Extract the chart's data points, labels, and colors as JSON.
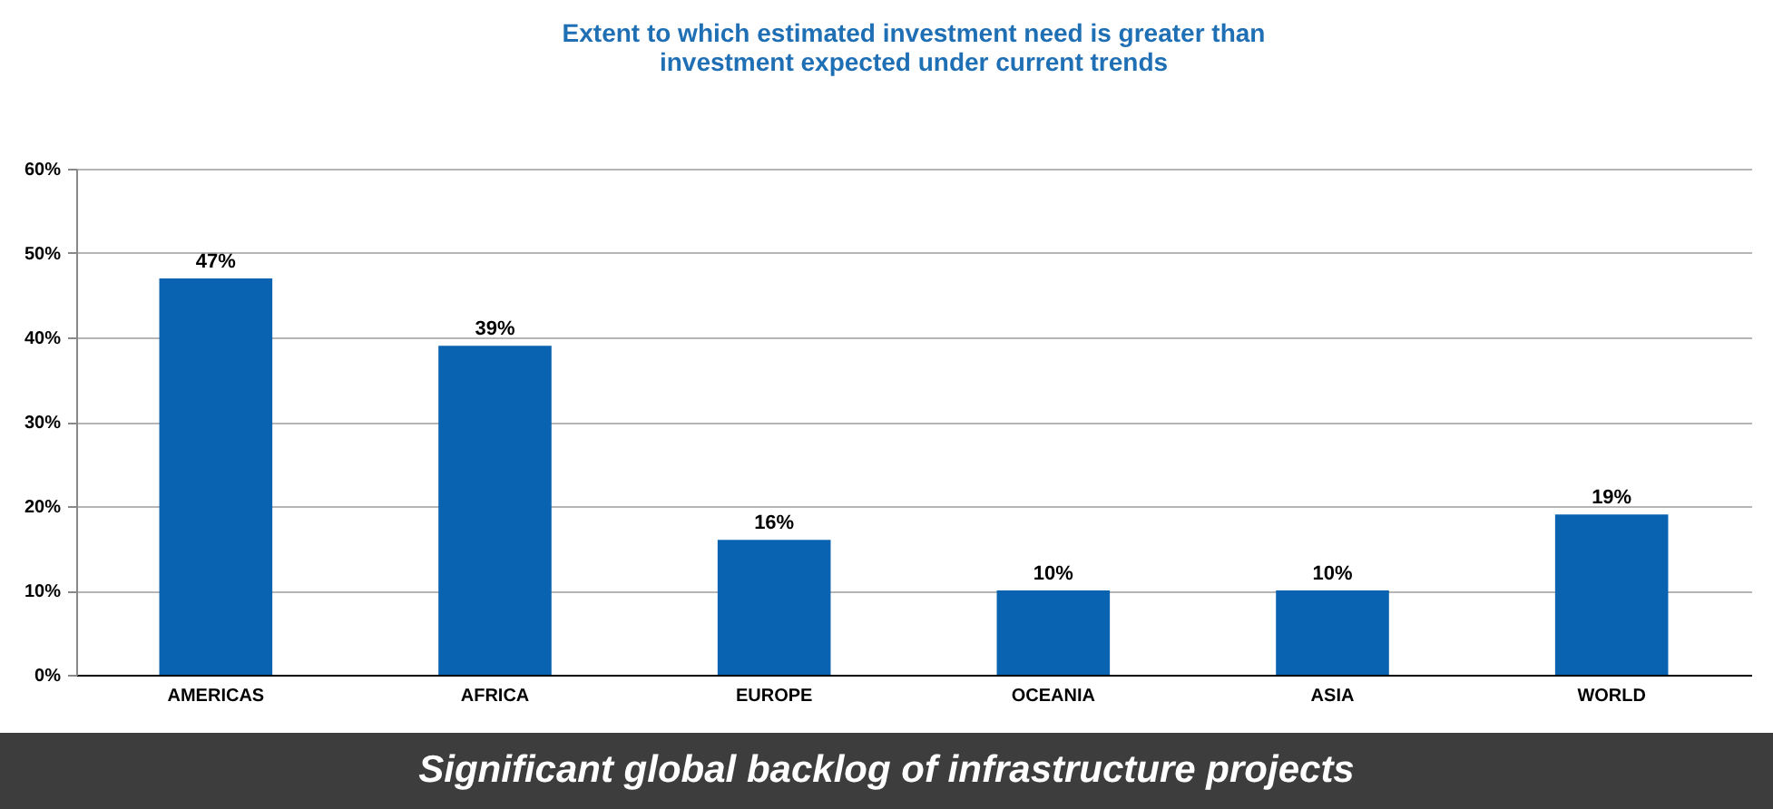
{
  "chart_data": {
    "type": "bar",
    "title": "Extent to which estimated investment need is greater than investment expected under current trends",
    "categories": [
      "AMERICAS",
      "AFRICA",
      "EUROPE",
      "OCEANIA",
      "ASIA",
      "WORLD"
    ],
    "values": [
      47,
      39,
      16,
      10,
      10,
      19
    ],
    "value_labels": [
      "47%",
      "39%",
      "16%",
      "10%",
      "10%",
      "19%"
    ],
    "color": "#0a63b0",
    "ylim": [
      0,
      60
    ],
    "yticks": [
      {
        "value": 0,
        "label": "0%"
      },
      {
        "value": 10,
        "label": "10%"
      },
      {
        "value": 20,
        "label": "20%"
      },
      {
        "value": 30,
        "label": "30%"
      },
      {
        "value": 40,
        "label": "40%"
      },
      {
        "value": 50,
        "label": "50%"
      },
      {
        "value": 60,
        "label": "60%"
      }
    ],
    "grid": "y",
    "annotations": [
      "Significant global backlog of infrastructure projects"
    ]
  }
}
